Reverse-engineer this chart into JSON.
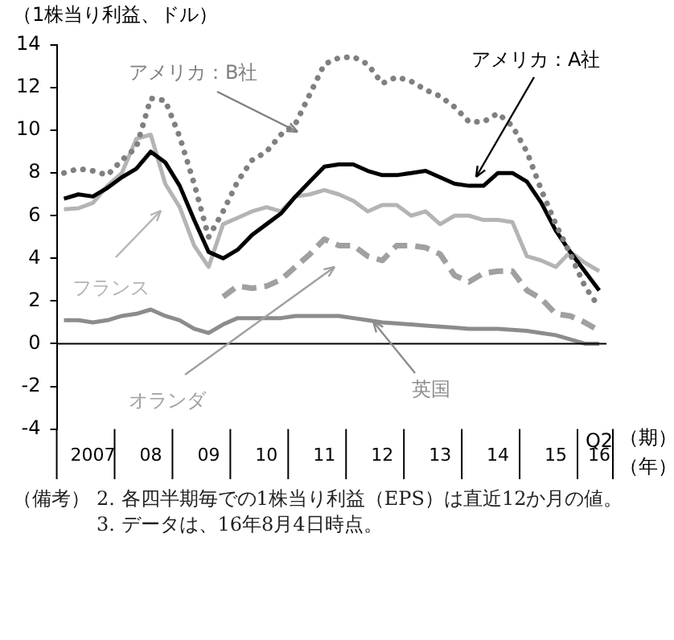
{
  "chart_data": {
    "type": "line",
    "ylabel": "（1株当り利益、ドル）",
    "categories": [
      null,
      null,
      "2007",
      null,
      null,
      null,
      "08",
      null,
      null,
      null,
      "09",
      null,
      null,
      null,
      "10",
      null,
      null,
      null,
      "11",
      null,
      null,
      null,
      "12",
      null,
      null,
      null,
      "13",
      null,
      null,
      null,
      "14",
      null,
      null,
      null,
      "15",
      null,
      null,
      "16"
    ],
    "series": [
      {
        "name": "アメリカ：B社",
        "color": "#808080",
        "line_style": "dotted",
        "values": [
          8.0,
          8.2,
          8.1,
          7.9,
          8.6,
          9.2,
          11.5,
          11.4,
          9.7,
          7.5,
          5.0,
          6.2,
          7.6,
          8.6,
          9.0,
          9.8,
          10.3,
          11.7,
          13.1,
          13.4,
          13.45,
          13.1,
          12.2,
          12.5,
          12.3,
          11.9,
          11.6,
          11.1,
          10.4,
          10.4,
          10.8,
          10.2,
          9.0,
          7.2,
          5.6,
          4.2,
          2.7,
          1.7
        ]
      },
      {
        "name": "アメリカ：A社",
        "color": "#000000",
        "line_style": "solid",
        "values": [
          6.8,
          7.0,
          6.9,
          7.3,
          7.8,
          8.2,
          9.0,
          8.5,
          7.4,
          5.8,
          4.3,
          4.0,
          4.4,
          5.1,
          5.6,
          6.1,
          6.9,
          7.6,
          8.3,
          8.4,
          8.4,
          8.1,
          7.9,
          7.9,
          8.0,
          8.1,
          7.8,
          7.5,
          7.4,
          7.4,
          8.0,
          8.0,
          7.6,
          6.6,
          5.3,
          4.3,
          3.4,
          2.5
        ]
      },
      {
        "name": "フランス",
        "color": "#b4b4b4",
        "line_style": "solid",
        "values": [
          6.3,
          6.35,
          6.6,
          7.4,
          8.0,
          9.6,
          9.8,
          7.5,
          6.4,
          4.6,
          3.6,
          5.6,
          5.9,
          6.2,
          6.4,
          6.2,
          6.9,
          7.0,
          7.2,
          7.0,
          6.7,
          6.2,
          6.5,
          6.5,
          6.0,
          6.2,
          5.6,
          6.0,
          6.0,
          5.8,
          5.8,
          5.7,
          4.1,
          3.9,
          3.6,
          4.3,
          3.8,
          3.4
        ]
      },
      {
        "name": "オランダ",
        "color": "#a0a0a0",
        "line_style": "dashed",
        "values": [
          null,
          null,
          null,
          null,
          null,
          null,
          null,
          null,
          null,
          null,
          null,
          2.2,
          2.7,
          2.6,
          2.7,
          3.0,
          3.6,
          4.2,
          4.9,
          4.6,
          4.6,
          4.1,
          3.9,
          4.6,
          4.6,
          4.5,
          4.2,
          3.2,
          2.9,
          3.3,
          3.4,
          3.4,
          2.5,
          2.1,
          1.4,
          1.3,
          1.0,
          0.6
        ]
      },
      {
        "name": "英国",
        "color": "#8c8c8c",
        "line_style": "solid",
        "values": [
          1.1,
          1.1,
          1.0,
          1.1,
          1.3,
          1.4,
          1.6,
          1.3,
          1.1,
          0.7,
          0.5,
          0.9,
          1.2,
          1.2,
          1.2,
          1.2,
          1.3,
          1.3,
          1.3,
          1.3,
          1.2,
          1.1,
          1.0,
          0.95,
          0.9,
          0.85,
          0.8,
          0.75,
          0.7,
          0.7,
          0.7,
          0.65,
          0.6,
          0.5,
          0.4,
          0.2,
          0.0,
          0.0
        ]
      }
    ],
    "ylim": [
      -4,
      14
    ],
    "yticks": [
      -4,
      -2,
      0,
      2,
      4,
      6,
      8,
      10,
      12,
      14
    ],
    "marker": "none",
    "annotations": [
      "Q2",
      "（期）",
      "（年）",
      "（備考）",
      "2. 各四半期毎での1株当り利益（EPS）は直近12か月の値。",
      "3. データは、16年8月4日時点。"
    ]
  }
}
